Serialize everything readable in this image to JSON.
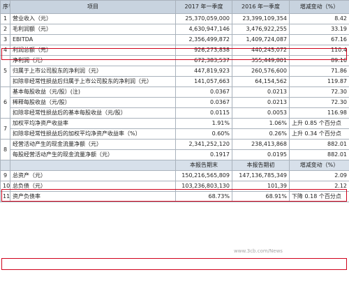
{
  "header": {
    "seq": "序号",
    "item": "项目",
    "col1": "2017 年一季度",
    "col2": "2016 年一季度",
    "change": "增减变动（%）"
  },
  "rows": [
    {
      "no": "1",
      "item": "营业收入（元）",
      "v1": "25,370,059,000",
      "v2": "23,399,109,354",
      "chg": "8.42"
    },
    {
      "no": "2",
      "item": "毛利润额（元）",
      "v1": "4,630,947,146",
      "v2": "3,476,922,255",
      "chg": "33.19"
    },
    {
      "no": "3",
      "item": "EBITDA",
      "v1": "2,356,499,872",
      "v2": "1,409,724,087",
      "chg": "67.16"
    },
    {
      "no": "4",
      "item": "利润总额（元）",
      "v1": "926,273,838",
      "v2": "440,245,072",
      "chg": "110.4"
    },
    {
      "no": "",
      "item": "净利润（元）",
      "v1": "672,383,537",
      "v2": "355,449,801",
      "chg": "89.16"
    },
    {
      "no": "5",
      "item": "归属于上市公司股东的净利润（元）",
      "v1": "447,819,923",
      "v2": "260,576,600",
      "chg": "71.86"
    },
    {
      "no": "",
      "item": "扣除非经常性损益后归属于上市公司股东的净利润（元）",
      "v1": "141,057,663",
      "v2": "64,154,562",
      "chg": "119.87"
    },
    {
      "no": "",
      "item": "基本每股收益（元/股）(注)",
      "v1": "0.0367",
      "v2": "0.0213",
      "chg": "72.30"
    },
    {
      "no": "6",
      "item": "稀释每股收益（元/股）",
      "v1": "0.0367",
      "v2": "0.0213",
      "chg": "72.30"
    },
    {
      "no": "",
      "item": "扣除非经常性损益后的基本每股收益（元/股）",
      "v1": "0.0115",
      "v2": "0.0053",
      "chg": "116.98"
    },
    {
      "no": "7",
      "item": "加权平均净资产收益率",
      "v1": "1.91%",
      "v2": "1.06%",
      "note": "上升 0.85 个百分点"
    },
    {
      "no": "",
      "item": "扣除非经常性损益后的加权平均净资产收益率（%）",
      "v1": "0.60%",
      "v2": "0.26%",
      "note": "上升 0.34 个百分点"
    },
    {
      "no": "8",
      "item": "经营活动产生的现金流量净额（元）",
      "v1": "2,341,252,120",
      "v2": "238,413,868",
      "chg": "882.01"
    },
    {
      "no": "",
      "item": "每股经营活动产生的现金流量净额（元）",
      "v1": "0.1917",
      "v2": "0.0195",
      "chg": "882.01"
    }
  ],
  "subheader": {
    "col1": "本报告期末",
    "col2": "本报告期初",
    "change": "增减变动（%）"
  },
  "rows2": [
    {
      "no": "9",
      "item": "总资产（元）",
      "v1": "150,216,565,809",
      "v2": "147,136,785,349",
      "chg": "2.09"
    },
    {
      "no": "10",
      "item": "总负债（元）",
      "v1": "103,236,803,130",
      "v2": "101,39",
      "chg": "2.12"
    },
    {
      "no": "11",
      "item": "资产负债率",
      "v1": "68.73%",
      "v2": "68.91%",
      "note": "下降 0.18 个百分点"
    }
  ],
  "watermark": "www.3cb.com/News",
  "highlight_color": "#d0021b",
  "header_bg": "#c8d3df"
}
